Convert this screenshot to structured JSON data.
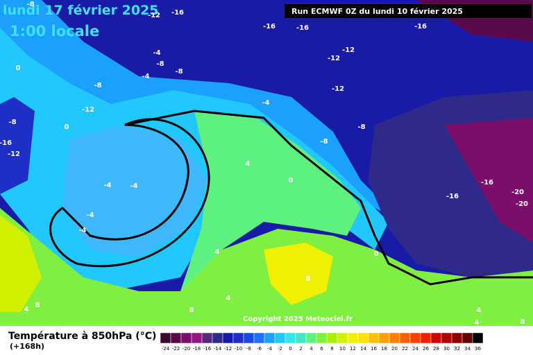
{
  "header": {
    "date": "lundi 17 février 2025",
    "time": "1:00 locale",
    "run": "Run ECMWF 0Z du lundi 10 février 2025"
  },
  "copyright": "Copyright 2025 Meteociel.fr",
  "legend": {
    "title": "Température à 850hPa (°C)",
    "lead": "(+168h)",
    "ticks": [
      -24,
      -22,
      -20,
      -18,
      -16,
      -14,
      -12,
      -10,
      -8,
      -6,
      -4,
      -2,
      0,
      2,
      4,
      6,
      8,
      10,
      12,
      14,
      16,
      18,
      20,
      22,
      24,
      26,
      28,
      30,
      32,
      34,
      36
    ],
    "colors": [
      "#3a0a2a",
      "#5a0a4a",
      "#7a0e6a",
      "#96168a",
      "#5a2a7a",
      "#2e2a8a",
      "#1a1aa8",
      "#1e2fc8",
      "#1a4ae6",
      "#2070ff",
      "#1aa0ff",
      "#20c8ff",
      "#30e6f0",
      "#40e8c0",
      "#60f080",
      "#80f040",
      "#a8f000",
      "#d0f000",
      "#f0f000",
      "#ffe000",
      "#ffc000",
      "#ffa000",
      "#ff8000",
      "#ff6000",
      "#ff4000",
      "#f02000",
      "#d00000",
      "#b00000",
      "#900000",
      "#600000",
      "#000000"
    ]
  },
  "map": {
    "labels": [
      -8,
      -12,
      -16,
      -16,
      -16,
      -16,
      -12,
      -12,
      -8,
      -4,
      -8,
      -4,
      -8,
      -12,
      -4,
      -12,
      -8,
      0,
      -8,
      -8,
      -16,
      -12,
      4,
      0,
      -16,
      -4,
      -4,
      -20,
      -16,
      -20,
      -4,
      -4,
      0,
      4,
      8,
      4,
      8,
      8,
      4,
      4,
      4,
      8,
      0
    ]
  }
}
